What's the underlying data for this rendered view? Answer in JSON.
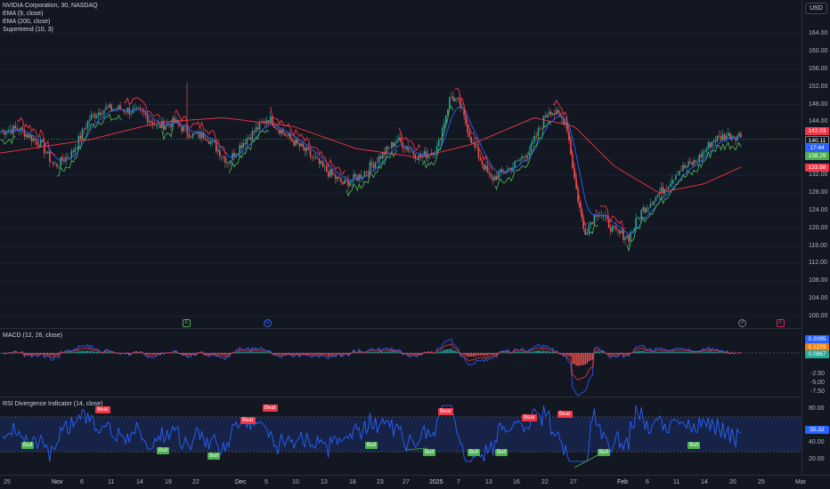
{
  "legend": {
    "symbol": "NVIDIA Corporation, 30, NASDAQ",
    "ema_fast": "EMA (9, close)",
    "ema_slow": "EMA (200, close)",
    "supertrend": "Supertrend (10, 3)",
    "macd": "MACD (12, 26, close)",
    "rsi": "RSI Divergence Indicator (14, close)"
  },
  "currency_label": "USD",
  "price_axis": [
    "164.00",
    "160.00",
    "156.00",
    "152.00",
    "148.00",
    "144.00",
    "136.00",
    "132.00",
    "128.00",
    "124.00",
    "120.00",
    "116.00",
    "112.00",
    "108.00",
    "104.00",
    "100.00"
  ],
  "price_tags": {
    "supertrend_upper": "142.03",
    "last_price": "140.11",
    "countdown": "17:44",
    "supertrend_lower": "138.29",
    "ema_200": "133.88"
  },
  "macd_axis": [
    "2.50",
    "-2.50",
    "-5.00",
    "-7.50"
  ],
  "macd_tags": {
    "macd": "0.2095",
    "signal": "0.1229",
    "hist": "0.0867"
  },
  "rsi_axis": [
    "80.00",
    "40.00",
    "20.00"
  ],
  "rsi_tags": {
    "rsi": "55.32"
  },
  "time_axis": [
    "25",
    "Nov",
    "6",
    "11",
    "14",
    "19",
    "22",
    "Dec",
    "5",
    "10",
    "13",
    "18",
    "23",
    "27",
    "2025",
    "7",
    "13",
    "16",
    "22",
    "27",
    "Feb",
    "6",
    "11",
    "14",
    "20",
    "25",
    "Mar"
  ],
  "events": {
    "e1": "E",
    "d1": "D",
    "e2": "E"
  },
  "signals": {
    "bull": "Bull",
    "bear": "Bear"
  },
  "colors": {
    "background": "#131722",
    "ema_fast": "#2962ff",
    "ema_slow": "#f23645",
    "st_up": "#4caf50",
    "st_down": "#f23645",
    "rsi_line": "#2962ff",
    "bull": "#4caf50",
    "bear": "#f23645"
  }
}
